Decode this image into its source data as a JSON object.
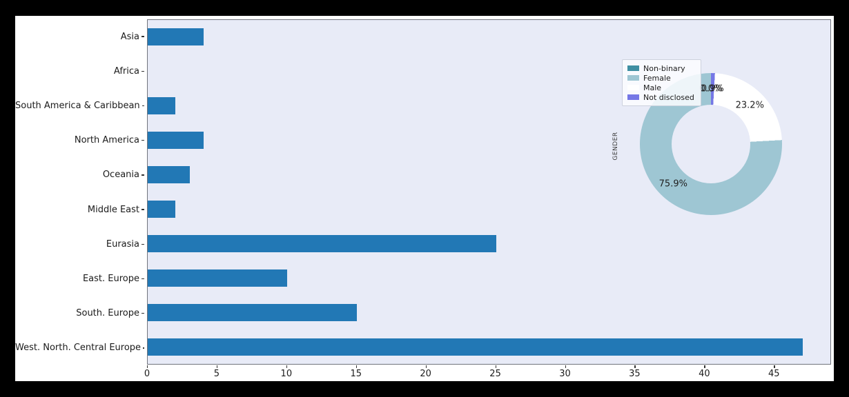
{
  "colors": {
    "page_background": "#000000",
    "figure_background": "#ffffff",
    "axes_background": "#e8ebf7",
    "bar_color": "#2278b5",
    "spine_color": "#70737c",
    "tick_text": "#1b1b1b"
  },
  "chart_data": [
    {
      "type": "bar",
      "orientation": "horizontal",
      "title": "",
      "xlabel": "",
      "ylabel": "",
      "categories": [
        "Asia",
        "Africa",
        "South America & Caribbean",
        "North America",
        "Oceania",
        "Middle East",
        "Eurasia",
        "East. Europe",
        "South. Europe",
        "West. North. Central Europe"
      ],
      "values": [
        4,
        0,
        2,
        4,
        3,
        2,
        25,
        10,
        15,
        47
      ],
      "xlim": [
        0,
        49
      ],
      "xticks": [
        0,
        5,
        10,
        15,
        20,
        25,
        30,
        35,
        40,
        45
      ],
      "grid": false,
      "bar_color": "#2278b5"
    },
    {
      "type": "pie",
      "donut": true,
      "ylabel": "GENDER",
      "start_angle": 90,
      "direction": "counterclockwise",
      "legend_position": "upper left",
      "slices": [
        {
          "label": "Non-binary",
          "value": 0.0,
          "pct_label": "0.0%",
          "color": "#3f8fa3"
        },
        {
          "label": "Female",
          "value": 75.9,
          "pct_label": "75.9%",
          "color": "#9ec6d3"
        },
        {
          "label": "Male",
          "value": 23.2,
          "pct_label": "23.2%",
          "color": "#ffffff"
        },
        {
          "label": "Not disclosed",
          "value": 0.9,
          "pct_label": "0.9%",
          "color": "#7577e6"
        }
      ]
    }
  ]
}
